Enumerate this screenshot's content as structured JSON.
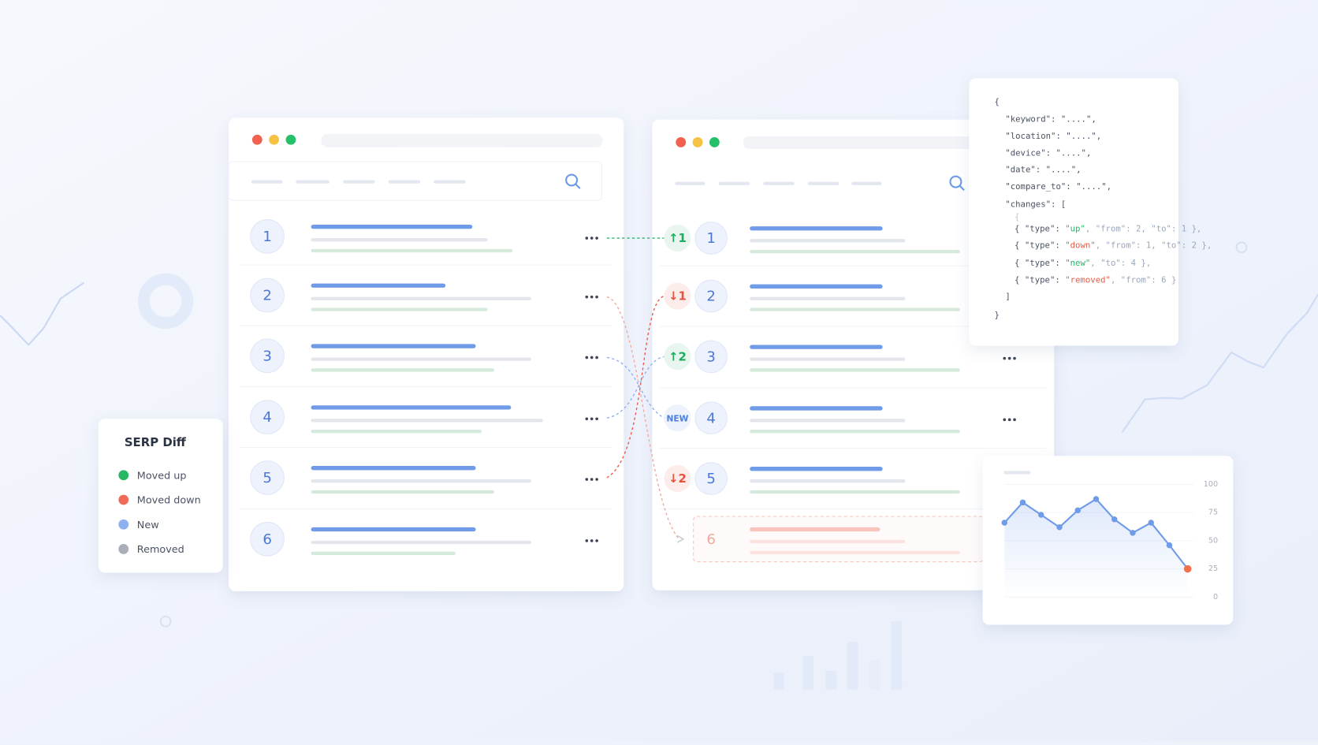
{
  "left_window": {
    "ranks": [
      1,
      2,
      3,
      4,
      5,
      6
    ]
  },
  "right_window": {
    "ranks": [
      1,
      2,
      3,
      4,
      5,
      6
    ],
    "badges": [
      "↑1",
      "↓1",
      "↑2",
      "NEW",
      "↓2",
      null
    ],
    "badge_colors": [
      "#1faa5f",
      "#e5533f",
      "#1faa5f",
      "#4a7fe0",
      "#e5533f",
      null
    ],
    "removed_color": "#f2a99c"
  },
  "legend": {
    "title": "SERP Diff",
    "items": [
      {
        "label": "Moved up",
        "color": "#27b765"
      },
      {
        "label": "Moved down",
        "color": "#f06a58"
      },
      {
        "label": "New",
        "color": "#8fb0ef"
      },
      {
        "label": "Removed",
        "color": "#a9aeb8"
      }
    ]
  },
  "code_panel": {
    "lines": [
      [
        "{"
      ],
      [
        "\"keyword\": \"....\","
      ],
      [
        "\"location\": \"....\","
      ],
      [
        "\"device\": \"....\","
      ],
      [
        "\"date\": \"....\","
      ],
      [
        "\"compare_to\": \"....\","
      ],
      [
        "\"changes\": ["
      ],
      [
        "{"
      ],
      [
        "{ \"type\": ",
        "\"up\"",
        ", \"from\": 2, \"to\": 1 },"
      ],
      [
        "{ \"type\": ",
        "\"down\"",
        ", \"from\": 1, \"to\": 2 },"
      ],
      [
        "{ \"type\": ",
        "\"new\"",
        ", \"to\": 4 },"
      ],
      [
        "{ \"type\": ",
        "\"removed\"",
        ", \"from\": 6 }"
      ],
      [
        "]"
      ],
      [
        "}"
      ]
    ],
    "token_colors": [
      null,
      null,
      null,
      null,
      null,
      null,
      null,
      null,
      "#27b765",
      "#ec5a47",
      "#27b765",
      "#ec5a47",
      null,
      null
    ]
  },
  "mini_chart": {
    "type": "line",
    "values": [
      66,
      84,
      73,
      62,
      77,
      87,
      69,
      57,
      66,
      46,
      25
    ],
    "ylim": [
      0,
      100
    ],
    "yticks": [
      0,
      25,
      50,
      75,
      100
    ],
    "color": "#6f9be8",
    "last_point_color": "#f0714e"
  }
}
